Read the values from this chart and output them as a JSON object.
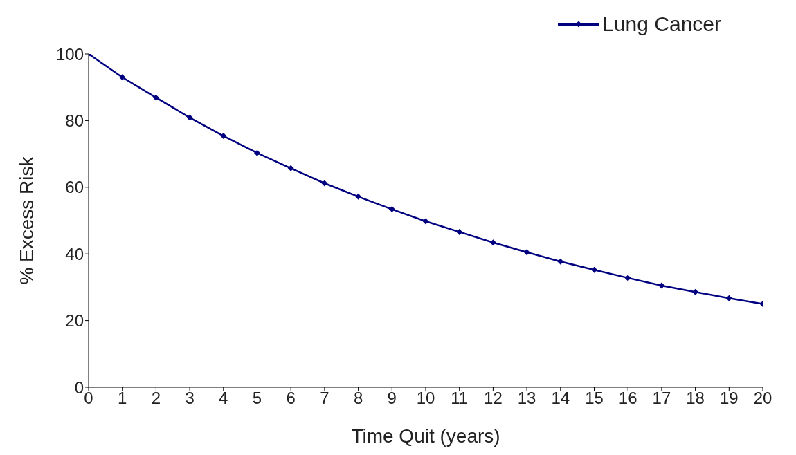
{
  "chart_data": {
    "type": "line",
    "xlabel": "Time Quit (years)",
    "ylabel": "% Excess Risk",
    "x": [
      0,
      1,
      2,
      3,
      4,
      5,
      6,
      7,
      8,
      9,
      10,
      11,
      12,
      13,
      14,
      15,
      16,
      17,
      18,
      19,
      20
    ],
    "series": [
      {
        "name": "Lung Cancer",
        "color": "#000080",
        "values": [
          100,
          93,
          86.9,
          80.9,
          75.4,
          70.3,
          65.7,
          61.2,
          57.2,
          53.4,
          49.8,
          46.6,
          43.4,
          40.5,
          37.7,
          35.2,
          32.8,
          30.5,
          28.6,
          26.7,
          25
        ]
      }
    ],
    "xlim": [
      0,
      20
    ],
    "xticks": [
      0,
      1,
      2,
      3,
      4,
      5,
      6,
      7,
      8,
      9,
      10,
      11,
      12,
      13,
      14,
      15,
      16,
      17,
      18,
      19,
      20
    ],
    "ylim": [
      0,
      100
    ],
    "yticks": [
      0,
      20,
      40,
      60,
      80,
      100
    ],
    "grid": false,
    "legend": "top right",
    "marker": "diamond",
    "line_style": "solid"
  }
}
